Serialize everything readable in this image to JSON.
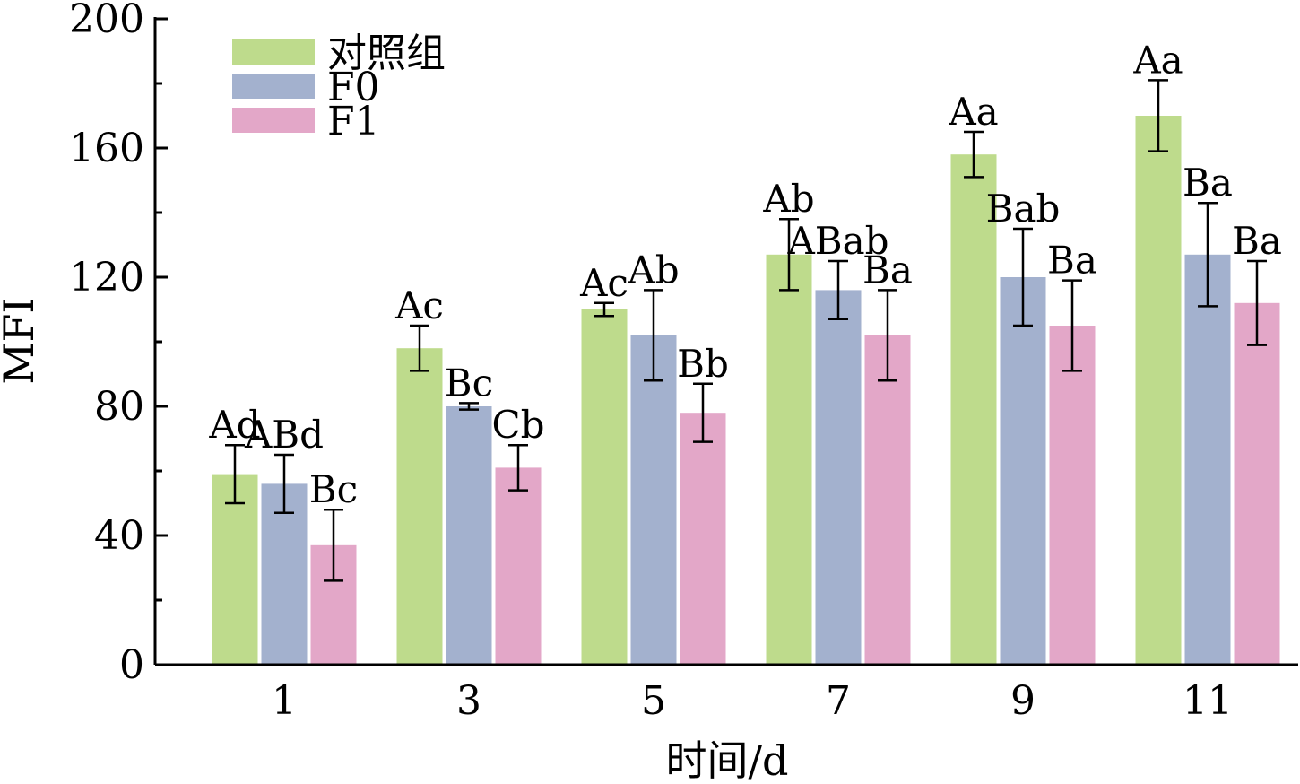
{
  "chart_data": {
    "type": "bar",
    "xlabel": "时间/d",
    "ylabel": "MFI",
    "ylim": [
      0,
      200
    ],
    "yticks": [
      0,
      40,
      80,
      120,
      160,
      200
    ],
    "categories": [
      "1",
      "3",
      "5",
      "7",
      "9",
      "11"
    ],
    "legend_position": "top-left",
    "grid": false,
    "series": [
      {
        "name": "对照组",
        "color": "#bedb8c",
        "values": [
          59,
          98,
          110,
          127,
          158,
          170
        ],
        "errors": [
          9,
          7,
          2,
          11,
          7,
          11
        ],
        "labels": [
          "Ad",
          "Ac",
          "Ac",
          "Ab",
          "Aa",
          "Aa"
        ]
      },
      {
        "name": "F0",
        "color": "#a3b1ce",
        "values": [
          56,
          80,
          102,
          116,
          120,
          127
        ],
        "errors": [
          9,
          1,
          14,
          9,
          15,
          16
        ],
        "labels": [
          "ABd",
          "Bc",
          "Ab",
          "ABab",
          "Bab",
          "Ba"
        ]
      },
      {
        "name": "F1",
        "color": "#e3a7c8",
        "values": [
          37,
          61,
          78,
          102,
          105,
          112
        ],
        "errors": [
          11,
          7,
          9,
          14,
          14,
          13
        ],
        "labels": [
          "Bc",
          "Cb",
          "Bb",
          "Ba",
          "Ba",
          "Ba"
        ]
      }
    ]
  }
}
